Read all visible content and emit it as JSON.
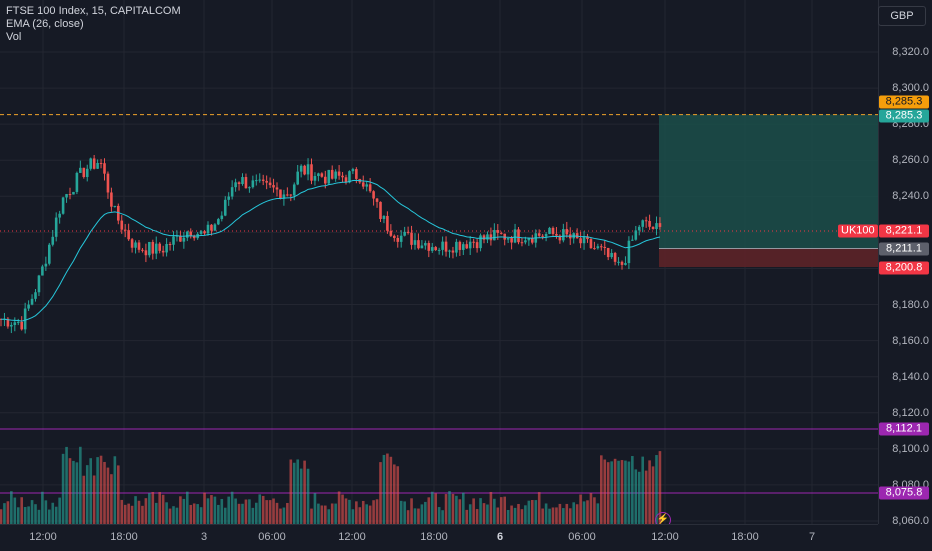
{
  "legend": {
    "title": "FTSE 100 Index, 15, CAPITALCOM",
    "ema": "EMA (26, close)",
    "vol": "Vol"
  },
  "currency": "GBP",
  "symbol": "UK100",
  "price_ticks": [
    "8,320.0",
    "8,300.0",
    "8,280.0",
    "8,260.0",
    "8,240.0",
    "8,220.0",
    "8,180.0",
    "8,160.0",
    "8,140.0",
    "8,120.0",
    "8,100.0",
    "8,080.0",
    "8,060.0"
  ],
  "time_labels": [
    "12:00",
    "18:00",
    "3",
    "06:00",
    "12:00",
    "18:00",
    "6",
    "06:00",
    "12:00",
    "18:00",
    "7"
  ],
  "tags": {
    "target_orange": "8,285.3",
    "target_teal": "8,285.3",
    "last": "8,221.1",
    "entry": "8,211.1",
    "stop": "8,200.8",
    "line_high": "8,112.1",
    "line_low": "8,075.8"
  },
  "colors": {
    "up": "#26a69a",
    "down": "#ef5350",
    "ema": "#26c6da",
    "target_zone": "#1b4f4a",
    "stop_zone": "#5c2328",
    "hline_orange": "#f0a22a",
    "hline_purple": "#9c27b0",
    "background": "#161a25"
  },
  "chart_data": {
    "type": "candlestick",
    "price_ylim": [
      8050,
      8335
    ],
    "series": [
      {
        "name": "FTSE 100 Index",
        "points": [
          {
            "t": "11:30",
            "close": 8172
          },
          {
            "t": "12:00",
            "close": 8170
          },
          {
            "t": "13:00",
            "close": 8195
          },
          {
            "t": "14:00",
            "close": 8238
          },
          {
            "t": "15:00",
            "close": 8255
          },
          {
            "t": "16:00",
            "close": 8260
          },
          {
            "t": "17:00",
            "close": 8230
          },
          {
            "t": "18:00",
            "close": 8212
          },
          {
            "t": "19:00",
            "close": 8210
          },
          {
            "t": "20:00",
            "close": 8222
          },
          {
            "t": "3 00:00",
            "close": 8218
          },
          {
            "t": "3 02:00",
            "close": 8230
          },
          {
            "t": "3 04:00",
            "close": 8250
          },
          {
            "t": "3 06:00",
            "close": 8245
          },
          {
            "t": "3 08:00",
            "close": 8242
          },
          {
            "t": "3 10:00",
            "close": 8255
          },
          {
            "t": "3 12:00",
            "close": 8250
          },
          {
            "t": "3 14:00",
            "close": 8252
          },
          {
            "t": "3 15:00",
            "close": 8225
          },
          {
            "t": "3 18:00",
            "close": 8218
          },
          {
            "t": "3 20:00",
            "close": 8212
          },
          {
            "t": "6 00:00",
            "close": 8218
          },
          {
            "t": "6 04:00",
            "close": 8219
          },
          {
            "t": "6 06:00",
            "close": 8210
          },
          {
            "t": "6 08:00",
            "close": 8200
          },
          {
            "t": "6 10:00",
            "close": 8225
          },
          {
            "t": "6 11:00",
            "close": 8221
          }
        ]
      },
      {
        "name": "EMA (26, close)"
      },
      {
        "name": "Vol"
      }
    ],
    "position": {
      "target": 8285.3,
      "entry": 8211.1,
      "stop": 8200.8
    },
    "horizontal_lines": [
      8285.3,
      8112.1,
      8075.8
    ]
  }
}
